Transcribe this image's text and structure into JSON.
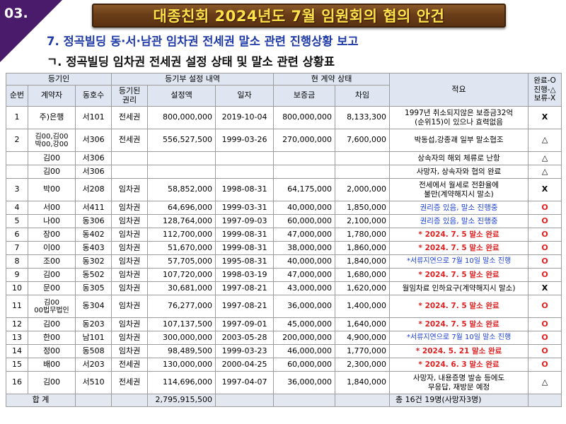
{
  "slide_number": "03.",
  "title": "대종친회 2024년도 7월 임원회의 협의 안건",
  "subtitle1": "7. 정곡빌딩 동·서·남관 임차권 전세권 말소 관련 진행상황 보고",
  "subtitle2": "ㄱ. 정곡빌딩 임차권 전세권 설정 상태 및 말소 관련 상황표",
  "table": {
    "group_headers": {
      "registrant": "등기인",
      "registry": "등기부 설정 내역",
      "contract": "현 계약 상태",
      "note": "적요",
      "status": "완료-O\n진행-△\n보류-X"
    },
    "columns": {
      "no": "순번",
      "contractor": "계약자",
      "unit": "동호수",
      "right": "등기된\n권리",
      "amount": "설정액",
      "date": "일자",
      "deposit": "보증금",
      "rent": "차임"
    },
    "rows": [
      {
        "no": "1",
        "contractor": "주)은행",
        "unit": "서101",
        "right": "전세권",
        "amount": "800,000,000",
        "date": "2019-10-04",
        "deposit": "800,000,000",
        "rent": "8,133,300",
        "note": "1997년 취소되지않은 보증금32억\n(순위15)이 있으나 효력없음",
        "status": "X"
      },
      {
        "no": "2",
        "contractor": "김00,김00\n박00,강00",
        "unit": "서306",
        "right": "전세권",
        "amount": "556,527,500",
        "date": "1999-03-26",
        "deposit": "270,000,000",
        "rent": "7,600,000",
        "note": "박동섭,강종괘 일부 말소협조",
        "status": "△"
      },
      {
        "no": "",
        "contractor": "김00",
        "unit": "서306",
        "right": "",
        "amount": "",
        "date": "",
        "deposit": "",
        "rent": "",
        "note": "상속자의 해외 체류로 난항",
        "status": "△"
      },
      {
        "no": "",
        "contractor": "김00",
        "unit": "서306",
        "right": "",
        "amount": "",
        "date": "",
        "deposit": "",
        "rent": "",
        "note": "사망자, 상속자와 협의 완료",
        "status": "△"
      },
      {
        "no": "3",
        "contractor": "박00",
        "unit": "서208",
        "right": "임차권",
        "amount": "58,852,000",
        "date": "1998-08-31",
        "deposit": "64,175,000",
        "rent": "2,000,000",
        "note": "전세에서 월세로 전환율에\n불만(계약해지시 말소)",
        "status": "X"
      },
      {
        "no": "4",
        "contractor": "서00",
        "unit": "서411",
        "right": "임차권",
        "amount": "64,696,000",
        "date": "1999-03-31",
        "deposit": "40,000,000",
        "rent": "1,850,000",
        "note": "권리증 있음, 말소 진행중",
        "status": "O"
      },
      {
        "no": "5",
        "contractor": "나00",
        "unit": "동306",
        "right": "임차권",
        "amount": "128,764,000",
        "date": "1997-09-03",
        "deposit": "60,000,000",
        "rent": "2,100,000",
        "note": "권리증 있음, 말소 진행중",
        "status": "O"
      },
      {
        "no": "6",
        "contractor": "장00",
        "unit": "동402",
        "right": "임차권",
        "amount": "112,700,000",
        "date": "1999-08-31",
        "deposit": "47,000,000",
        "rent": "1,780,000",
        "note": "* 2024. 7. 5 말소 완료",
        "status": "O"
      },
      {
        "no": "7",
        "contractor": "이00",
        "unit": "동403",
        "right": "임차권",
        "amount": "51,670,000",
        "date": "1999-08-31",
        "deposit": "38,000,000",
        "rent": "1,860,000",
        "note": "* 2024. 7. 5 말소 완료",
        "status": "O"
      },
      {
        "no": "8",
        "contractor": "조00",
        "unit": "동302",
        "right": "임차권",
        "amount": "57,705,000",
        "date": "1995-08-31",
        "deposit": "40,000,000",
        "rent": "1,840,000",
        "note": "*서류지연으로 7월 10일 말소 진행",
        "status": "O"
      },
      {
        "no": "9",
        "contractor": "김00",
        "unit": "동502",
        "right": "임차권",
        "amount": "107,720,000",
        "date": "1998-03-19",
        "deposit": "47,000,000",
        "rent": "1,680,000",
        "note": "* 2024. 7. 5 말소 완료",
        "status": "O"
      },
      {
        "no": "10",
        "contractor": "문00",
        "unit": "동305",
        "right": "임차권",
        "amount": "30,681,000",
        "date": "1997-08-21",
        "deposit": "43,000,000",
        "rent": "1,620,000",
        "note": "월임차료 인하요구(계약해지시 말소)",
        "status": "X"
      },
      {
        "no": "11",
        "contractor": "김00\n00법무법인",
        "unit": "동304",
        "right": "임차권",
        "amount": "76,277,000",
        "date": "1997-08-21",
        "deposit": "36,000,000",
        "rent": "1,400,000",
        "note": "* 2024. 7. 5 말소 완료",
        "status": "O"
      },
      {
        "no": "12",
        "contractor": "김00",
        "unit": "동203",
        "right": "임차권",
        "amount": "107,137,500",
        "date": "1997-09-01",
        "deposit": "45,000,000",
        "rent": "1,640,000",
        "note": "* 2024. 7. 5 말소 완료",
        "status": "O"
      },
      {
        "no": "13",
        "contractor": "한00",
        "unit": "남101",
        "right": "임차권",
        "amount": "300,000,000",
        "date": "2003-05-28",
        "deposit": "200,000,000",
        "rent": "4,900,000",
        "note": "*서류지연으로 7월 10일 말소 진행",
        "status": "O"
      },
      {
        "no": "14",
        "contractor": "정00",
        "unit": "동508",
        "right": "임차권",
        "amount": "98,489,500",
        "date": "1999-03-23",
        "deposit": "46,000,000",
        "rent": "1,770,000",
        "note": "* 2024. 5. 21 말소 완료",
        "status": "O"
      },
      {
        "no": "15",
        "contractor": "배00",
        "unit": "서203",
        "right": "전세권",
        "amount": "130,000,000",
        "date": "2000-04-25",
        "deposit": "60,000,000",
        "rent": "2,300,000",
        "note": "* 2024. 6. 3 말소 완료",
        "status": "O"
      },
      {
        "no": "16",
        "contractor": "김00",
        "unit": "서510",
        "right": "전세권",
        "amount": "114,696,000",
        "date": "1997-04-07",
        "deposit": "36,000,000",
        "rent": "1,840,000",
        "note": "사망자, 내용증명 발송 등에도\n무응답, 재방문 예정",
        "status": "△"
      }
    ],
    "total": {
      "label": "합    계",
      "amount": "2,795,915,500",
      "note": "총 16건        19명(사망자3명)"
    }
  },
  "colors": {
    "title_text": "#ffe14a",
    "title_bg": "#6a3d18",
    "corner": "#4a1a6b",
    "subtitle_blue": "#1f3aa6",
    "done_red": "#e02020",
    "progress_blue": "#1a3fd0",
    "header_bg": "#dfe6f1"
  }
}
